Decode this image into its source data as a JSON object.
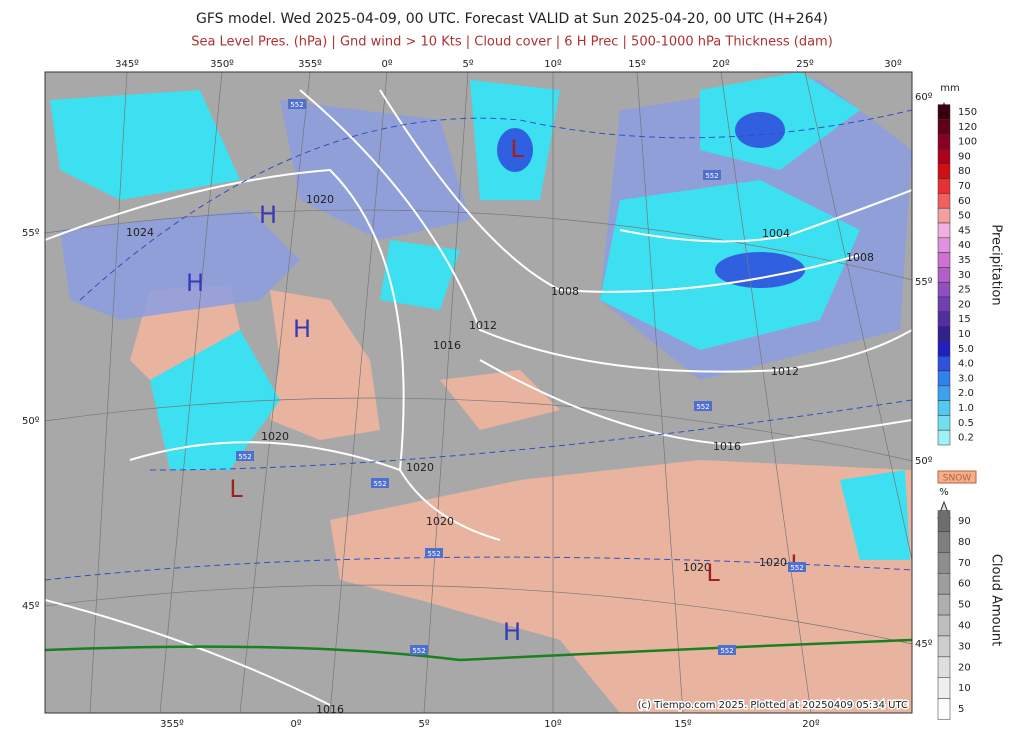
{
  "header": {
    "title": "GFS model. Wed 2025-04-09, 00 UTC. Forecast VALID at Sun 2025-04-20, 00 UTC (H+264)",
    "subtitle": "Sea Level Pres. (hPa) | Gnd wind > 10 Kts | Cloud cover | 6 H Prec | 500-1000 hPa Thickness (dam)"
  },
  "map": {
    "top_longitudes": [
      "345º",
      "350º",
      "355º",
      "0º",
      "5º",
      "10º",
      "15º",
      "20º",
      "25º",
      "30º"
    ],
    "bottom_longitudes": [
      "355º",
      "0º",
      "5º",
      "10º",
      "15º",
      "20º"
    ],
    "left_latitudes": [
      "55º",
      "50º",
      "45º"
    ],
    "right_latitudes": [
      "60º",
      "55º",
      "50º",
      "45º"
    ],
    "isobar_labels": [
      "1024",
      "1020",
      "1020",
      "1020",
      "1020",
      "1016",
      "1012",
      "1008",
      "1004",
      "1008",
      "1012",
      "1016",
      "1020",
      "1020",
      "1016"
    ],
    "centers": [
      "H",
      "H",
      "H",
      "L",
      "L",
      "L",
      "L",
      "H"
    ],
    "thickness_labels": [
      "552",
      "552",
      "552",
      "552",
      "552",
      "552",
      "552",
      "552",
      "552"
    ],
    "copyright": "(c) Tiempo.com 2025. Plotted at 20250409 05:34 UTC"
  },
  "legend": {
    "precip_unit": "mm",
    "precip_values": [
      "150",
      "120",
      "100",
      "90",
      "80",
      "70",
      "60",
      "50",
      "45",
      "40",
      "35",
      "30",
      "25",
      "20",
      "15",
      "10",
      "5.0",
      "4.0",
      "3.0",
      "2.0",
      "1.0",
      "0.5",
      "0.2"
    ],
    "precip_title": "Precipitation",
    "snow": "SNOW",
    "cloud_unit": "%",
    "cloud_values": [
      "90",
      "80",
      "70",
      "60",
      "50",
      "40",
      "30",
      "20",
      "10",
      "5"
    ],
    "cloud_title": "Cloud Amount"
  }
}
